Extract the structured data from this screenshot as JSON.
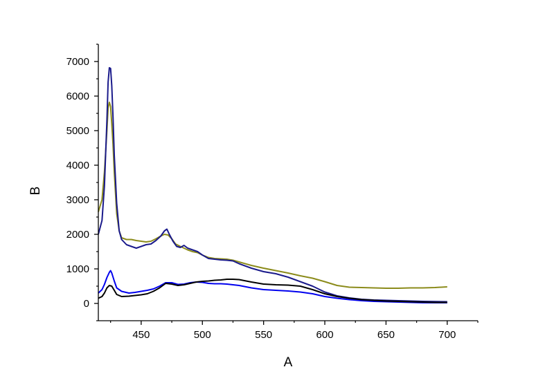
{
  "chart_data": {
    "type": "line",
    "title": "",
    "xlabel": "A",
    "ylabel": "B",
    "xlim": [
      415,
      725
    ],
    "ylim": [
      -500,
      7500
    ],
    "xticks": [
      450,
      500,
      550,
      600,
      650,
      700
    ],
    "yticks": [
      0,
      1000,
      2000,
      3000,
      4000,
      5000,
      6000,
      7000
    ],
    "grid": false,
    "legend": "none",
    "series": [
      {
        "color": "#8b8b1a",
        "points": [
          [
            415,
            2650
          ],
          [
            418,
            3000
          ],
          [
            420,
            3800
          ],
          [
            422,
            5000
          ],
          [
            423,
            5650
          ],
          [
            424,
            5820
          ],
          [
            425,
            5700
          ],
          [
            426,
            5200
          ],
          [
            427,
            4600
          ],
          [
            428,
            3800
          ],
          [
            430,
            2600
          ],
          [
            432,
            2100
          ],
          [
            434,
            1900
          ],
          [
            438,
            1850
          ],
          [
            442,
            1850
          ],
          [
            446,
            1820
          ],
          [
            450,
            1800
          ],
          [
            454,
            1780
          ],
          [
            458,
            1800
          ],
          [
            462,
            1870
          ],
          [
            466,
            1950
          ],
          [
            469,
            2000
          ],
          [
            472,
            1980
          ],
          [
            475,
            1870
          ],
          [
            478,
            1720
          ],
          [
            482,
            1650
          ],
          [
            485,
            1600
          ],
          [
            488,
            1550
          ],
          [
            492,
            1500
          ],
          [
            496,
            1470
          ],
          [
            500,
            1400
          ],
          [
            505,
            1330
          ],
          [
            510,
            1300
          ],
          [
            515,
            1290
          ],
          [
            520,
            1280
          ],
          [
            525,
            1250
          ],
          [
            530,
            1200
          ],
          [
            540,
            1100
          ],
          [
            550,
            1020
          ],
          [
            560,
            950
          ],
          [
            570,
            880
          ],
          [
            580,
            800
          ],
          [
            590,
            730
          ],
          [
            600,
            630
          ],
          [
            610,
            520
          ],
          [
            620,
            470
          ],
          [
            630,
            460
          ],
          [
            640,
            450
          ],
          [
            650,
            440
          ],
          [
            660,
            440
          ],
          [
            670,
            450
          ],
          [
            680,
            450
          ],
          [
            690,
            460
          ],
          [
            700,
            480
          ]
        ]
      },
      {
        "color": "#1a1a8b",
        "points": [
          [
            415,
            2000
          ],
          [
            418,
            2400
          ],
          [
            420,
            3400
          ],
          [
            422,
            5300
          ],
          [
            423,
            6400
          ],
          [
            424,
            6820
          ],
          [
            425,
            6800
          ],
          [
            426,
            6300
          ],
          [
            427,
            5400
          ],
          [
            428,
            4300
          ],
          [
            430,
            2900
          ],
          [
            432,
            2100
          ],
          [
            434,
            1850
          ],
          [
            438,
            1700
          ],
          [
            442,
            1650
          ],
          [
            446,
            1600
          ],
          [
            450,
            1650
          ],
          [
            454,
            1700
          ],
          [
            458,
            1720
          ],
          [
            462,
            1820
          ],
          [
            466,
            1950
          ],
          [
            469,
            2100
          ],
          [
            471,
            2150
          ],
          [
            473,
            2000
          ],
          [
            476,
            1800
          ],
          [
            479,
            1650
          ],
          [
            482,
            1620
          ],
          [
            485,
            1680
          ],
          [
            488,
            1600
          ],
          [
            492,
            1550
          ],
          [
            496,
            1500
          ],
          [
            500,
            1400
          ],
          [
            505,
            1300
          ],
          [
            510,
            1280
          ],
          [
            515,
            1260
          ],
          [
            520,
            1250
          ],
          [
            525,
            1230
          ],
          [
            530,
            1150
          ],
          [
            540,
            1020
          ],
          [
            550,
            920
          ],
          [
            560,
            860
          ],
          [
            570,
            760
          ],
          [
            580,
            630
          ],
          [
            590,
            500
          ],
          [
            600,
            330
          ],
          [
            610,
            220
          ],
          [
            620,
            160
          ],
          [
            630,
            120
          ],
          [
            640,
            100
          ],
          [
            650,
            90
          ],
          [
            660,
            80
          ],
          [
            670,
            70
          ],
          [
            680,
            60
          ],
          [
            690,
            55
          ],
          [
            700,
            50
          ]
        ]
      },
      {
        "color": "#0000ee",
        "points": [
          [
            415,
            300
          ],
          [
            418,
            400
          ],
          [
            420,
            550
          ],
          [
            422,
            750
          ],
          [
            424,
            900
          ],
          [
            425,
            950
          ],
          [
            426,
            880
          ],
          [
            428,
            650
          ],
          [
            430,
            450
          ],
          [
            434,
            350
          ],
          [
            440,
            300
          ],
          [
            445,
            320
          ],
          [
            450,
            350
          ],
          [
            455,
            380
          ],
          [
            460,
            420
          ],
          [
            465,
            500
          ],
          [
            470,
            600
          ],
          [
            475,
            600
          ],
          [
            480,
            550
          ],
          [
            485,
            560
          ],
          [
            490,
            600
          ],
          [
            495,
            620
          ],
          [
            500,
            610
          ],
          [
            505,
            580
          ],
          [
            510,
            570
          ],
          [
            515,
            570
          ],
          [
            520,
            560
          ],
          [
            525,
            540
          ],
          [
            530,
            520
          ],
          [
            540,
            450
          ],
          [
            550,
            400
          ],
          [
            560,
            380
          ],
          [
            570,
            360
          ],
          [
            580,
            330
          ],
          [
            590,
            280
          ],
          [
            600,
            200
          ],
          [
            610,
            150
          ],
          [
            620,
            110
          ],
          [
            630,
            80
          ],
          [
            640,
            60
          ],
          [
            650,
            50
          ],
          [
            660,
            40
          ],
          [
            670,
            30
          ],
          [
            680,
            20
          ],
          [
            690,
            20
          ],
          [
            700,
            20
          ]
        ]
      },
      {
        "color": "#000000",
        "points": [
          [
            415,
            150
          ],
          [
            418,
            200
          ],
          [
            420,
            300
          ],
          [
            422,
            450
          ],
          [
            424,
            520
          ],
          [
            426,
            500
          ],
          [
            428,
            380
          ],
          [
            430,
            260
          ],
          [
            434,
            200
          ],
          [
            440,
            210
          ],
          [
            445,
            230
          ],
          [
            450,
            250
          ],
          [
            455,
            280
          ],
          [
            460,
            350
          ],
          [
            465,
            450
          ],
          [
            470,
            580
          ],
          [
            475,
            560
          ],
          [
            480,
            520
          ],
          [
            485,
            540
          ],
          [
            490,
            580
          ],
          [
            495,
            620
          ],
          [
            500,
            640
          ],
          [
            505,
            650
          ],
          [
            510,
            670
          ],
          [
            515,
            680
          ],
          [
            520,
            700
          ],
          [
            525,
            700
          ],
          [
            530,
            690
          ],
          [
            540,
            620
          ],
          [
            550,
            560
          ],
          [
            560,
            540
          ],
          [
            570,
            530
          ],
          [
            580,
            500
          ],
          [
            590,
            400
          ],
          [
            600,
            280
          ],
          [
            610,
            200
          ],
          [
            620,
            150
          ],
          [
            630,
            110
          ],
          [
            640,
            90
          ],
          [
            650,
            70
          ],
          [
            660,
            60
          ],
          [
            670,
            50
          ],
          [
            680,
            40
          ],
          [
            690,
            30
          ],
          [
            700,
            30
          ]
        ]
      }
    ]
  }
}
